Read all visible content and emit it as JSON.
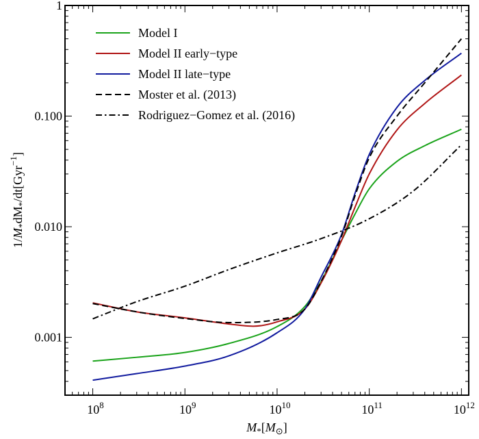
{
  "chart_data": {
    "type": "line",
    "title": "",
    "xlabel": "M_*[M_⊙]",
    "ylabel": "1/M_* dM_*/dt[Gyr^-1]",
    "x_log": true,
    "y_log": true,
    "xlim": [
      50000000.0,
      1200000000000.0
    ],
    "ylim": [
      0.0003,
      1
    ],
    "x_ticks": [
      {
        "value": 100000000.0,
        "base": "10",
        "exp": "8"
      },
      {
        "value": 1000000000.0,
        "base": "10",
        "exp": "9"
      },
      {
        "value": 10000000000.0,
        "base": "10",
        "exp": "10"
      },
      {
        "value": 100000000000.0,
        "base": "10",
        "exp": "11"
      },
      {
        "value": 1000000000000.0,
        "base": "10",
        "exp": "12"
      }
    ],
    "y_ticks": [
      {
        "value": 0.001,
        "label": "0.001"
      },
      {
        "value": 0.01,
        "label": "0.010"
      },
      {
        "value": 0.1,
        "label": "0.100"
      },
      {
        "value": 1,
        "label": "1"
      }
    ],
    "legend_position": "top-left",
    "series": [
      {
        "name": "Model I",
        "color": "#1aa31a",
        "dash": "solid",
        "x": [
          100000000.0,
          300000000.0,
          1000000000.0,
          3000000000.0,
          10000000000.0,
          20000000000.0,
          30000000000.0,
          50000000000.0,
          70000000000.0,
          100000000000.0,
          200000000000.0,
          400000000000.0,
          1000000000000.0
        ],
        "y": [
          0.00061,
          0.00066,
          0.00073,
          0.00088,
          0.00125,
          0.0019,
          0.0032,
          0.0075,
          0.013,
          0.022,
          0.039,
          0.054,
          0.076
        ]
      },
      {
        "name": "Model II early−type",
        "color": "#b01515",
        "dash": "solid",
        "x": [
          100000000.0,
          300000000.0,
          1000000000.0,
          3000000000.0,
          5500000000.0,
          10000000000.0,
          20000000000.0,
          30000000000.0,
          50000000000.0,
          70000000000.0,
          100000000000.0,
          200000000000.0,
          400000000000.0,
          1000000000000.0
        ],
        "y": [
          0.00205,
          0.0017,
          0.0015,
          0.00132,
          0.00126,
          0.00138,
          0.0018,
          0.0031,
          0.0075,
          0.015,
          0.03,
          0.075,
          0.13,
          0.235
        ]
      },
      {
        "name": "Model II late−type",
        "color": "#101a9e",
        "dash": "solid",
        "x": [
          100000000.0,
          300000000.0,
          1000000000.0,
          3000000000.0,
          10000000000.0,
          20000000000.0,
          30000000000.0,
          50000000000.0,
          70000000000.0,
          100000000000.0,
          200000000000.0,
          400000000000.0,
          1000000000000.0
        ],
        "y": [
          0.00041,
          0.00047,
          0.00055,
          0.00068,
          0.0011,
          0.0018,
          0.0035,
          0.0085,
          0.02,
          0.045,
          0.12,
          0.21,
          0.37
        ]
      },
      {
        "name": "Moster et al. (2013)",
        "color": "#000000",
        "dash": "dashed",
        "x": [
          100000000.0,
          300000000.0,
          1000000000.0,
          3000000000.0,
          10000000000.0,
          20000000000.0,
          30000000000.0,
          50000000000.0,
          70000000000.0,
          100000000000.0,
          200000000000.0,
          400000000000.0,
          1000000000000.0
        ],
        "y": [
          0.00202,
          0.0017,
          0.00148,
          0.00136,
          0.00145,
          0.0018,
          0.0032,
          0.0082,
          0.019,
          0.042,
          0.1,
          0.2,
          0.5
        ]
      },
      {
        "name": "Rodriguez−Gomez et al. (2016)",
        "color": "#000000",
        "dash": "dashdot",
        "x": [
          100000000.0,
          300000000.0,
          1000000000.0,
          3000000000.0,
          10000000000.0,
          30000000000.0,
          100000000000.0,
          300000000000.0,
          1000000000000.0
        ],
        "y": [
          0.00147,
          0.0021,
          0.0029,
          0.0041,
          0.0058,
          0.0078,
          0.0118,
          0.021,
          0.055
        ]
      }
    ]
  }
}
